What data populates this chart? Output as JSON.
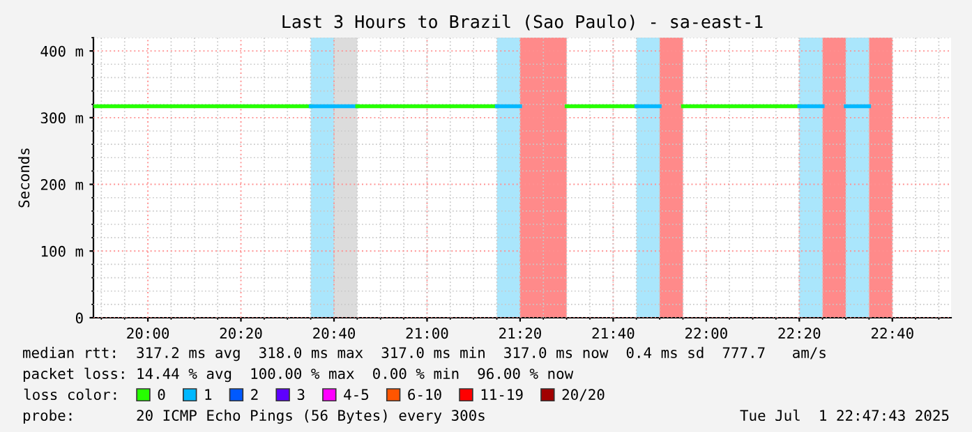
{
  "chart_data": {
    "type": "line",
    "title": "Last 3 Hours to Brazil (Sao Paulo) - sa-east-1",
    "ylabel": "Seconds",
    "xlim": [
      19.805,
      22.877
    ],
    "xticks": [
      {
        "value": 20.0,
        "label": "20:00"
      },
      {
        "value": 20.3333,
        "label": "20:20"
      },
      {
        "value": 20.6667,
        "label": "20:40"
      },
      {
        "value": 21.0,
        "label": "21:00"
      },
      {
        "value": 21.3333,
        "label": "21:20"
      },
      {
        "value": 21.6667,
        "label": "21:40"
      },
      {
        "value": 22.0,
        "label": "22:00"
      },
      {
        "value": 22.3333,
        "label": "22:20"
      },
      {
        "value": 22.6667,
        "label": "22:40"
      }
    ],
    "ylim": [
      0,
      420
    ],
    "yticks": [
      0,
      {
        "value": 100,
        "label": "100 m"
      },
      {
        "value": 200,
        "label": "200 m"
      },
      {
        "value": 300,
        "label": "300 m"
      },
      {
        "value": 400,
        "label": "400 m"
      }
    ],
    "grid": true,
    "legend": "bottom left",
    "legend_title": "loss color:",
    "series": [
      {
        "name": "0",
        "color": "#26ff00",
        "x": [
          19.805,
          20.5833
        ],
        "values": [
          317,
          317
        ]
      },
      {
        "name": "1",
        "color": "#00b8ff",
        "x": [
          20.5833,
          20.75
        ],
        "values": [
          317,
          317
        ]
      },
      {
        "name": "2",
        "color": "#0059ff"
      },
      {
        "name": "3",
        "color": "#5e00ff"
      },
      {
        "name": "4-5",
        "color": "#ff00ff"
      },
      {
        "name": "6-10",
        "color": "#ff5500"
      },
      {
        "name": "11-19",
        "color": "#ff0000"
      },
      {
        "name": "20/20",
        "color": "#a10000"
      },
      {
        "color": "#26ff00",
        "x": [
          20.75,
          21.25
        ],
        "values": [
          317,
          317
        ]
      },
      {
        "color": "#26ff00",
        "x": [
          21.5,
          21.75
        ],
        "values": [
          317,
          317
        ]
      },
      {
        "color": "#26ff00",
        "x": [
          21.9167,
          22.3333
        ],
        "values": [
          317,
          317
        ]
      },
      {
        "color": "#00b8ff",
        "x": [
          21.25,
          21.3333
        ],
        "values": [
          317,
          317
        ]
      },
      {
        "color": "#00b8ff",
        "x": [
          21.75,
          21.8333
        ],
        "values": [
          317,
          317
        ]
      },
      {
        "color": "#00b8ff",
        "x": [
          22.3333,
          22.4167
        ],
        "values": [
          317,
          317
        ]
      },
      {
        "color": "#00b8ff",
        "x": [
          22.5,
          22.5833
        ],
        "values": [
          317,
          317
        ]
      }
    ],
    "bands": [
      {
        "axis": "x",
        "from": 20.5833,
        "to": 20.6667,
        "color": "#aae6fc"
      },
      {
        "axis": "x",
        "from": 20.6667,
        "to": 20.75,
        "color": "#dcdcdc"
      },
      {
        "axis": "x",
        "from": 21.25,
        "to": 21.3333,
        "color": "#aae6fc"
      },
      {
        "axis": "x",
        "from": 21.3333,
        "to": 21.5,
        "color": "#ff8a8a"
      },
      {
        "axis": "x",
        "from": 21.75,
        "to": 21.8333,
        "color": "#aae6fc"
      },
      {
        "axis": "x",
        "from": 21.8333,
        "to": 21.9167,
        "color": "#ff8a8a"
      },
      {
        "axis": "x",
        "from": 22.3333,
        "to": 22.4167,
        "color": "#aae6fc"
      },
      {
        "axis": "x",
        "from": 22.4167,
        "to": 22.5,
        "color": "#ff8a8a"
      },
      {
        "axis": "x",
        "from": 22.5,
        "to": 22.5833,
        "color": "#aae6fc"
      },
      {
        "axis": "x",
        "from": 22.5833,
        "to": 22.6667,
        "color": "#ff8a8a"
      }
    ],
    "annotations": [
      "median rtt:  317.2 ms avg  318.0 ms max  317.0 ms min  317.0 ms now  0.4 ms sd  777.7   am/s",
      "packet loss: 14.44 % avg  100.00 % max  0.00 % min  96.00 % now",
      "probe:       20 ICMP Echo Pings (56 Bytes) every 300s",
      "Tue Jul  1 22:47:43 2025"
    ]
  }
}
